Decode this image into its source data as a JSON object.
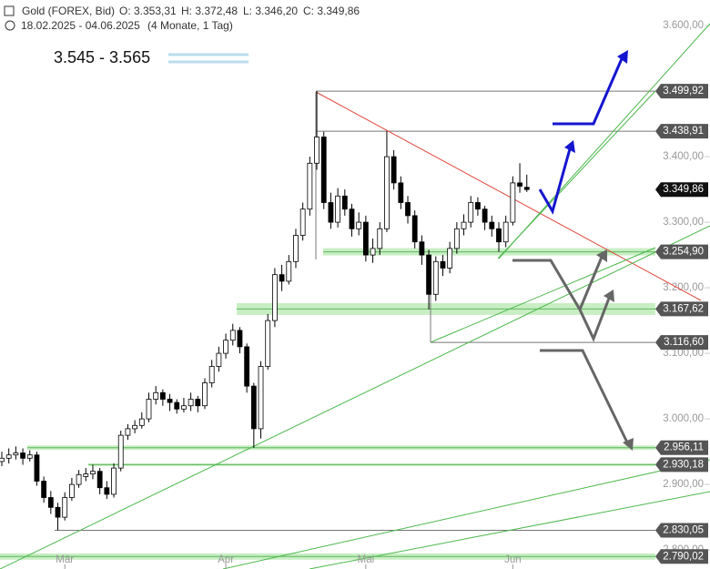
{
  "chart_data": {
    "type": "candlestick",
    "header": {
      "symbol": "Gold (FOREX, Bid)",
      "open": "O: 3.353,31",
      "high": "H: 3.372,48",
      "low": "L: 3.346,20",
      "close": "C: 3.349,86",
      "range": "18.02.2025 - 04.06.2025",
      "span": "(4 Monate, 1 Tag)"
    },
    "annotation": "3.545 - 3.565",
    "categories": [
      null,
      null,
      null,
      null,
      null,
      null,
      null,
      null,
      null,
      "Mär",
      null,
      null,
      null,
      null,
      null,
      null,
      null,
      null,
      null,
      null,
      null,
      null,
      null,
      null,
      null,
      null,
      null,
      null,
      null,
      null,
      null,
      null,
      "Apr",
      null,
      null,
      null,
      null,
      null,
      null,
      null,
      null,
      null,
      null,
      null,
      null,
      null,
      null,
      null,
      null,
      null,
      null,
      null,
      "Mai",
      null,
      null,
      null,
      null,
      null,
      null,
      null,
      null,
      null,
      null,
      null,
      null,
      null,
      null,
      null,
      null,
      null,
      null,
      null,
      null,
      "Jun",
      null,
      null
    ],
    "open": [
      2935,
      2940,
      2945,
      2948,
      2940,
      2945,
      2905,
      2880,
      2865,
      2850,
      2880,
      2900,
      2912,
      2916,
      2920,
      2895,
      2885,
      2925,
      2975,
      2985,
      2990,
      3000,
      3030,
      3040,
      3030,
      3025,
      3015,
      3020,
      3030,
      3020,
      3055,
      3080,
      3100,
      3120,
      3135,
      3110,
      3050,
      2985,
      3080,
      3150,
      3220,
      3210,
      3240,
      3280,
      3320,
      3390,
      3430,
      3330,
      3300,
      3340,
      3320,
      3290,
      3300,
      3250,
      3260,
      3290,
      3400,
      3360,
      3330,
      3310,
      3270,
      3250,
      3190,
      3240,
      3230,
      3260,
      3290,
      3300,
      3330,
      3320,
      3300,
      3290,
      3270,
      3300,
      3360,
      3353.31
    ],
    "high": [
      2950,
      2955,
      2958,
      2955,
      2952,
      2950,
      2912,
      2890,
      2872,
      2888,
      2910,
      2922,
      2925,
      2930,
      2925,
      2905,
      2932,
      2982,
      2992,
      2998,
      3010,
      3040,
      3050,
      3045,
      3038,
      3030,
      3032,
      3040,
      3035,
      3062,
      3090,
      3110,
      3130,
      3145,
      3140,
      3115,
      3055,
      3088,
      3160,
      3230,
      3235,
      3250,
      3290,
      3330,
      3400,
      3500,
      3438,
      3345,
      3352,
      3350,
      3328,
      3315,
      3310,
      3275,
      3300,
      3439,
      3410,
      3370,
      3340,
      3318,
      3280,
      3258,
      3248,
      3250,
      3270,
      3300,
      3312,
      3340,
      3338,
      3325,
      3310,
      3300,
      3310,
      3370,
      3390,
      3372.48
    ],
    "low": [
      2928,
      2932,
      2938,
      2930,
      2935,
      2898,
      2872,
      2855,
      2830,
      2845,
      2875,
      2895,
      2905,
      2908,
      2885,
      2878,
      2880,
      2920,
      2968,
      2978,
      2985,
      2995,
      3022,
      3020,
      3012,
      3008,
      3010,
      3012,
      3010,
      3015,
      3048,
      3072,
      3092,
      3112,
      3100,
      3040,
      2956,
      2970,
      3075,
      3140,
      3195,
      3205,
      3230,
      3272,
      3310,
      3380,
      3320,
      3290,
      3292,
      3310,
      3278,
      3280,
      3240,
      3238,
      3250,
      3285,
      3350,
      3320,
      3298,
      3260,
      3235,
      3167,
      3180,
      3218,
      3222,
      3252,
      3280,
      3292,
      3310,
      3288,
      3278,
      3255,
      3262,
      3295,
      3345,
      3346.2
    ],
    "close": [
      2940,
      2945,
      2948,
      2940,
      2945,
      2905,
      2880,
      2865,
      2850,
      2880,
      2900,
      2915,
      2916,
      2920,
      2895,
      2885,
      2925,
      2975,
      2985,
      2990,
      3000,
      3030,
      3040,
      3030,
      3025,
      3015,
      3020,
      3030,
      3020,
      3055,
      3080,
      3100,
      3120,
      3135,
      3110,
      3050,
      2985,
      3080,
      3150,
      3220,
      3210,
      3240,
      3280,
      3320,
      3390,
      3430,
      3330,
      3300,
      3340,
      3320,
      3290,
      3300,
      3250,
      3260,
      3290,
      3400,
      3360,
      3330,
      3310,
      3270,
      3250,
      3190,
      3240,
      3230,
      3260,
      3290,
      3300,
      3330,
      3320,
      3300,
      3290,
      3270,
      3300,
      3360,
      3355,
      3349.86
    ],
    "up_color": "#ffffff",
    "down_color": "#000000",
    "ylim": [
      2771,
      3639
    ],
    "yticks": [
      {
        "value": 3600,
        "label": "3.600,00"
      },
      {
        "value": 3400,
        "label": "3.400,00"
      },
      {
        "value": 3300,
        "label": "3.300,00"
      },
      {
        "value": 3200,
        "label": "3.200,00"
      },
      {
        "value": 3100,
        "label": "3.100,00"
      },
      {
        "value": 3000,
        "label": "3.000,00"
      },
      {
        "value": 2900,
        "label": "2.900,00"
      },
      {
        "value": 2800,
        "label": "2.800,00"
      }
    ],
    "levels": [
      {
        "value": 3499.92,
        "label": "3.499,92",
        "style": "line"
      },
      {
        "value": 3438.91,
        "label": "3.438,91",
        "style": "line"
      },
      {
        "value": 3349.86,
        "label": "3.349,86",
        "style": "current"
      },
      {
        "value": 3254.9,
        "label": "3.254,90",
        "style": "zone"
      },
      {
        "value": 3167.62,
        "label": "3.167,62",
        "style": "zone"
      },
      {
        "value": 3116.6,
        "label": "3.116,60",
        "style": "line"
      },
      {
        "value": 2956.11,
        "label": "2.956,11",
        "style": "zone"
      },
      {
        "value": 2930.18,
        "label": "2.930,18",
        "style": "zone"
      },
      {
        "value": 2830.05,
        "label": "2.830,05",
        "style": "line"
      },
      {
        "value": 2790.02,
        "label": "2.790,02",
        "style": "zone"
      }
    ]
  }
}
